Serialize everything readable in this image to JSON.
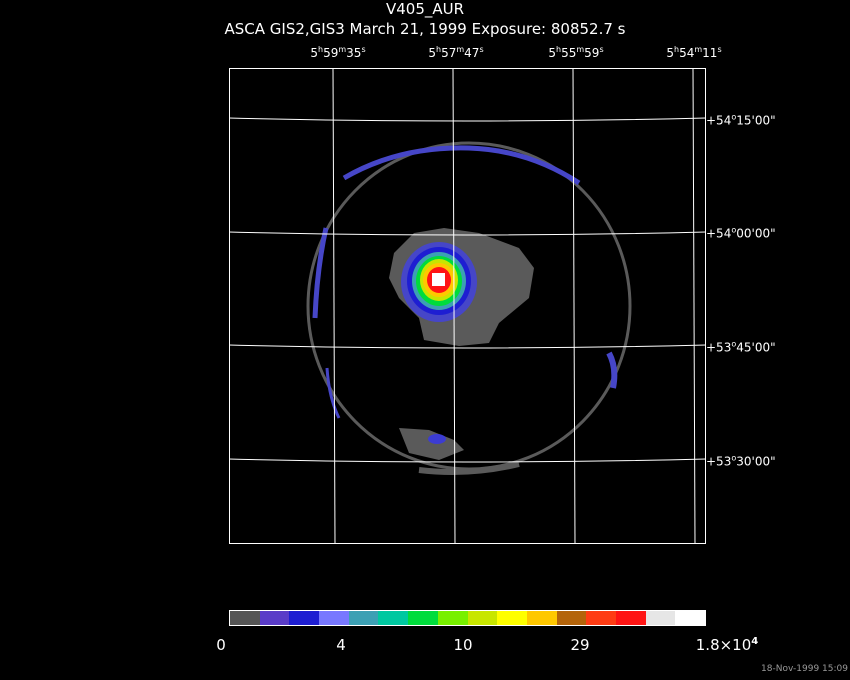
{
  "header": {
    "title": "V405_AUR",
    "subtitle": "ASCA GIS2,GIS3 March 21, 1999 Exposure: 80852.7 s"
  },
  "ra_labels": [
    {
      "h": "5",
      "m": "59",
      "s": "35"
    },
    {
      "h": "5",
      "m": "57",
      "s": "47"
    },
    {
      "h": "5",
      "m": "55",
      "s": "59"
    },
    {
      "h": "5",
      "m": "54",
      "s": "11"
    }
  ],
  "dec_labels": [
    {
      "d": "+54",
      "m": "15",
      "s": "00"
    },
    {
      "d": "+54",
      "m": "00",
      "s": "00"
    },
    {
      "d": "+53",
      "m": "45",
      "s": "00"
    },
    {
      "d": "+53",
      "m": "30",
      "s": "00"
    }
  ],
  "colorbar": {
    "colors": [
      "#555555",
      "#5a3cc8",
      "#1e1ed2",
      "#7878ff",
      "#3ca0b4",
      "#00c8a0",
      "#00dc3c",
      "#78f000",
      "#c8e600",
      "#ffff00",
      "#ffc800",
      "#b4640a",
      "#ff3c14",
      "#ff1414",
      "#e6e6e6",
      "#ffffff"
    ],
    "labels": [
      "0",
      "4",
      "10",
      "29",
      "1.8×10"
    ],
    "label_exponent": "4"
  },
  "timestamp": "18-Nov-1999 15:09"
}
